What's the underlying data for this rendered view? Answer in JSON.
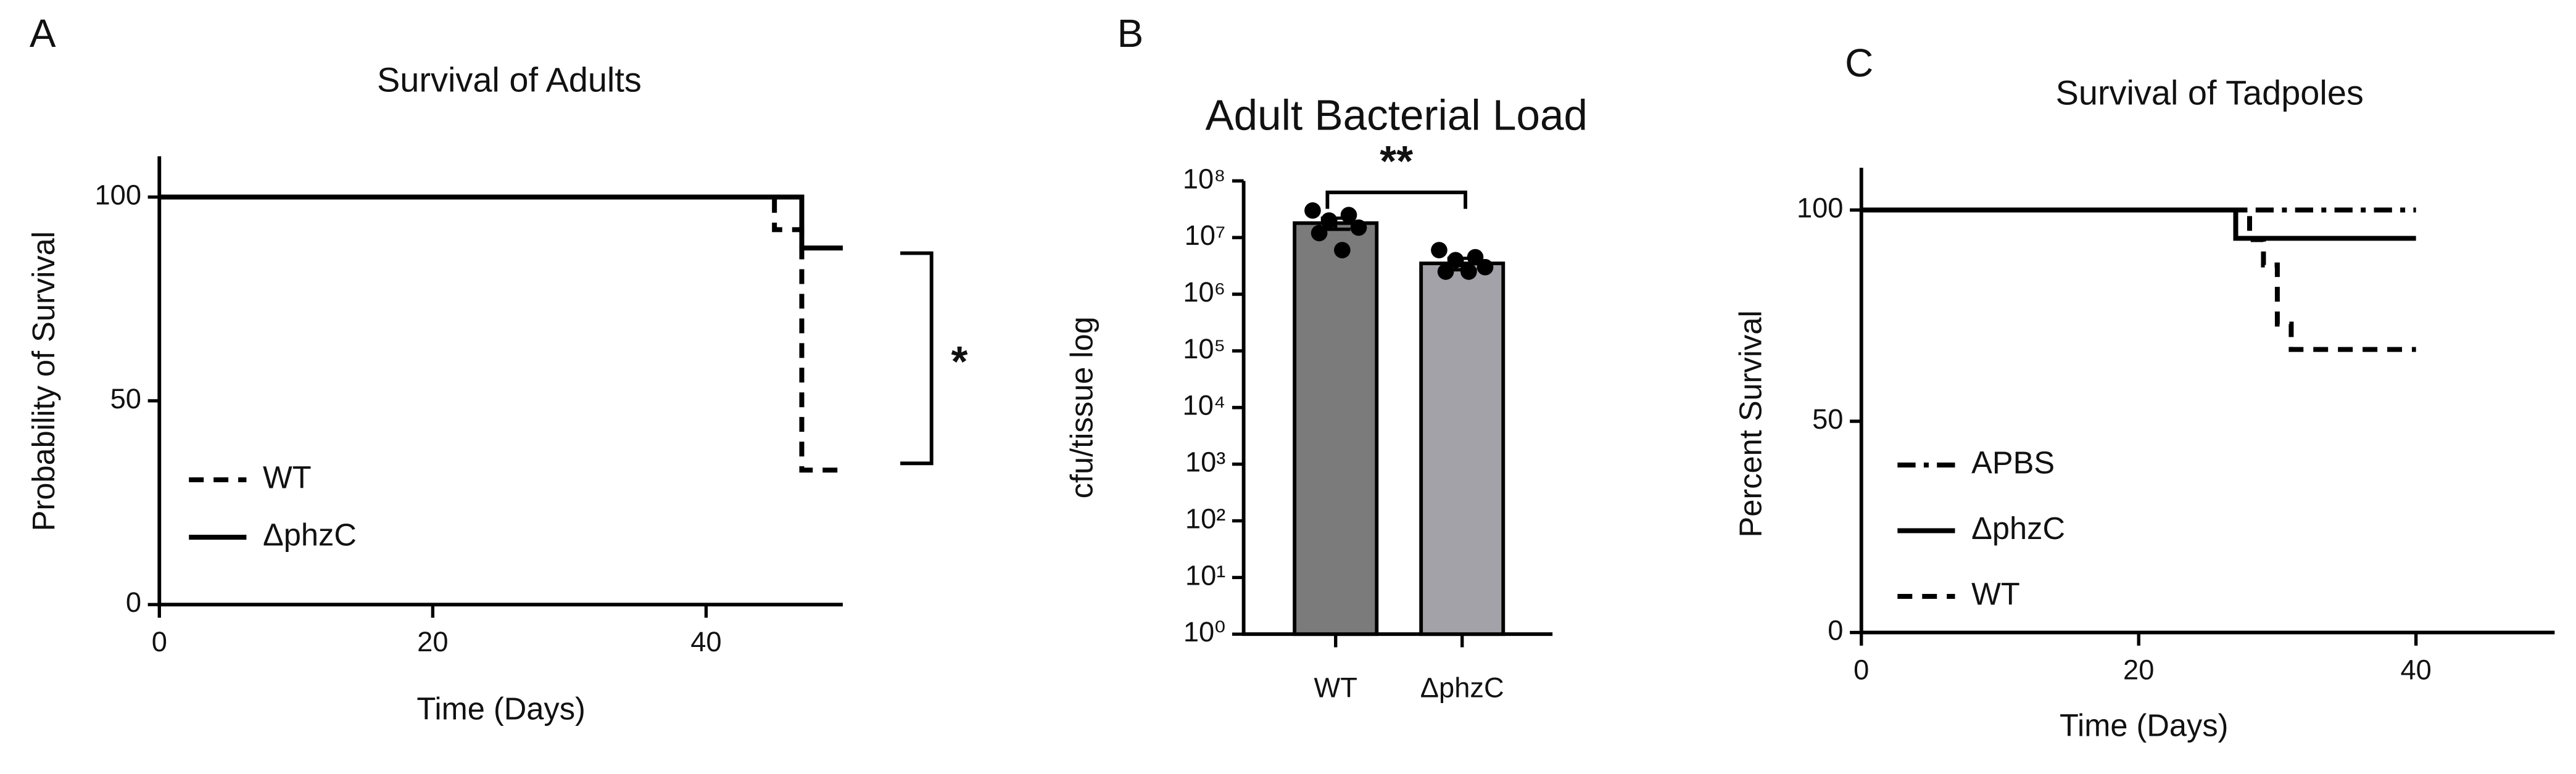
{
  "chart_data": [
    {
      "type": "step",
      "panel": "A",
      "title": "Survival of Adults",
      "xlabel": "Time (Days)",
      "ylabel": "Probability of Survival",
      "xlim": [
        0,
        50
      ],
      "xticks": [
        0,
        20,
        40
      ],
      "ylim": [
        0,
        110
      ],
      "yticks": [
        0,
        50,
        100
      ],
      "legend": "lower left",
      "annotation": "*",
      "series": [
        {
          "name": "WT",
          "color": "#000000",
          "linestyle": "dashed",
          "x": [
            0,
            45,
            47,
            50
          ],
          "values": [
            100,
            92,
            33,
            33
          ]
        },
        {
          "name": "ΔphzC",
          "color": "#000000",
          "linestyle": "solid",
          "x": [
            0,
            47,
            50
          ],
          "values": [
            100,
            87.5,
            87.5
          ]
        }
      ]
    },
    {
      "type": "bar",
      "panel": "B",
      "title": "Adult Bacterial Load",
      "ylabel": "cfu/tissue log",
      "log": true,
      "ylim": [
        1,
        100000000
      ],
      "yticks": [
        {
          "value": 1,
          "label": "10⁰"
        },
        {
          "value": 10,
          "label": "10¹"
        },
        {
          "value": 100,
          "label": "10²"
        },
        {
          "value": 1000,
          "label": "10³"
        },
        {
          "value": 10000,
          "label": "10⁴"
        },
        {
          "value": 100000,
          "label": "10⁵"
        },
        {
          "value": 1000000,
          "label": "10⁶"
        },
        {
          "value": 10000000,
          "label": "10⁷"
        },
        {
          "value": 100000000,
          "label": "10⁸"
        }
      ],
      "categories": [
        "WT",
        "ΔphzC"
      ],
      "values": [
        18000000,
        3500000
      ],
      "errors": [
        4000000,
        800000
      ],
      "colors": [
        "#7b7b7b",
        "#a2a2a8"
      ],
      "annotation": "**",
      "points": [
        [
          30000000,
          25000000,
          20000000,
          15000000,
          12000000,
          6000000
        ],
        [
          6000000,
          4500000,
          4000000,
          3000000,
          2500000,
          2500000
        ]
      ]
    },
    {
      "type": "step",
      "panel": "C",
      "title": "Survival of Tadpoles",
      "xlabel": "Time (Days)",
      "ylabel": "Percent Survival",
      "xlim": [
        0,
        50
      ],
      "xticks": [
        0,
        20,
        40
      ],
      "ylim": [
        0,
        110
      ],
      "yticks": [
        0,
        50,
        100
      ],
      "legend": "lower left",
      "series": [
        {
          "name": "APBS",
          "color": "#000000",
          "linestyle": "dashdot",
          "x": [
            0,
            40
          ],
          "values": [
            100,
            100
          ]
        },
        {
          "name": "ΔphzC",
          "color": "#000000",
          "linestyle": "solid",
          "x": [
            0,
            27,
            40
          ],
          "values": [
            100,
            93.3,
            93.3
          ]
        },
        {
          "name": "WT",
          "color": "#000000",
          "linestyle": "dashed",
          "x": [
            0,
            28,
            29,
            30,
            31,
            40
          ],
          "values": [
            100,
            93,
            87,
            73,
            67,
            67
          ]
        }
      ]
    }
  ]
}
